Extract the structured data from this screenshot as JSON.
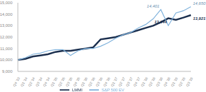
{
  "chart_data": {
    "type": "line",
    "categories": [
      "Q4 '13",
      "Q1 '14",
      "Q2 '14",
      "Q3 '14",
      "Q4 '14",
      "Q1 '15",
      "Q2 '15",
      "Q3 '15",
      "Q4 '15",
      "Q1 '16",
      "Q2 '16",
      "Q3 '16",
      "Q4 '16",
      "Q1 '17",
      "Q2 '17",
      "Q3 '17",
      "Q4 '17",
      "Q1 '18",
      "Q2 '18",
      "Q3 '18",
      "Q4 '18",
      "Q1 '19",
      "Q2 '19",
      "Q3 '19"
    ],
    "series": [
      {
        "name": "LMMI",
        "color": "#1b2f4e",
        "values": [
          10000,
          10100,
          10300,
          10400,
          10500,
          10700,
          10800,
          10800,
          10900,
          11000,
          11100,
          11800,
          11900,
          12000,
          12200,
          12400,
          12600,
          12800,
          13000,
          13300,
          13644,
          13500,
          13700,
          13921
        ],
        "value_labels": [
          null,
          null,
          null,
          null,
          null,
          null,
          null,
          null,
          null,
          null,
          null,
          null,
          null,
          null,
          null,
          null,
          null,
          null,
          null,
          null,
          "13,644",
          null,
          null,
          "13,921"
        ]
      },
      {
        "name": "S&P 500 EV",
        "color": "#7fb2dc",
        "values": [
          10000,
          10200,
          10500,
          10600,
          10800,
          10900,
          10900,
          10400,
          10800,
          11000,
          11000,
          11200,
          11500,
          11900,
          12200,
          12400,
          12800,
          13100,
          13600,
          14401,
          13000,
          14100,
          14300,
          14650
        ],
        "value_labels": [
          null,
          null,
          null,
          null,
          null,
          null,
          null,
          null,
          null,
          null,
          null,
          null,
          null,
          null,
          null,
          null,
          null,
          null,
          null,
          "14,401",
          null,
          null,
          null,
          "14,650"
        ]
      }
    ],
    "ylim": [
      9000,
      15000
    ],
    "yticks": [
      {
        "value": 9000,
        "label": "9,000"
      },
      {
        "value": 10000,
        "label": "10,000"
      },
      {
        "value": 11000,
        "label": "11,000"
      },
      {
        "value": 12000,
        "label": "12,000"
      },
      {
        "value": 13000,
        "label": "13,000"
      },
      {
        "value": 14000,
        "label": "14,000"
      },
      {
        "value": 15000,
        "label": "15,000"
      }
    ],
    "grid": false,
    "legend": "bottom",
    "data_labels": true
  }
}
